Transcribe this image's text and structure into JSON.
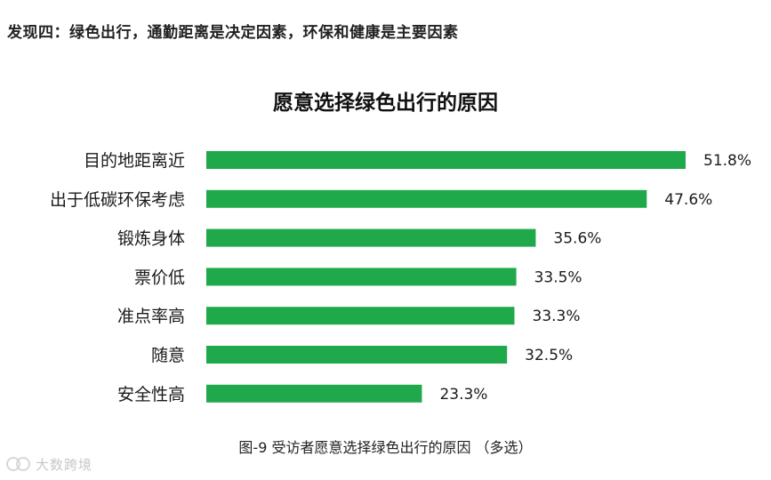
{
  "headline": "发现四：绿色出行，通勤距离是决定因素，环保和健康是主要因素",
  "caption": "图-9 受访者愿意选择绿色出行的原因 （多选）",
  "watermark": {
    "text": "大数跨境",
    "logo": "cn-logo-icon"
  },
  "colors": {
    "bar": "#1fa94a",
    "text": "#1a1a1a"
  },
  "chart_data": {
    "type": "bar",
    "orientation": "horizontal",
    "title": "愿意选择绿色出行的原因",
    "categories": [
      "目的地距离近",
      "出于低碳环保考虑",
      "锻炼身体",
      "票价低",
      "准点率高",
      "随意",
      "安全性高"
    ],
    "values": [
      51.8,
      47.6,
      35.6,
      33.5,
      33.3,
      32.5,
      23.3
    ],
    "value_labels": [
      "51.8%",
      "47.6%",
      "35.6%",
      "33.5%",
      "33.3%",
      "32.5%",
      "23.3%"
    ],
    "unit": "%",
    "xlabel": "",
    "ylabel": "",
    "xlim": [
      0,
      51.8
    ],
    "grid": false,
    "legend": "none"
  }
}
